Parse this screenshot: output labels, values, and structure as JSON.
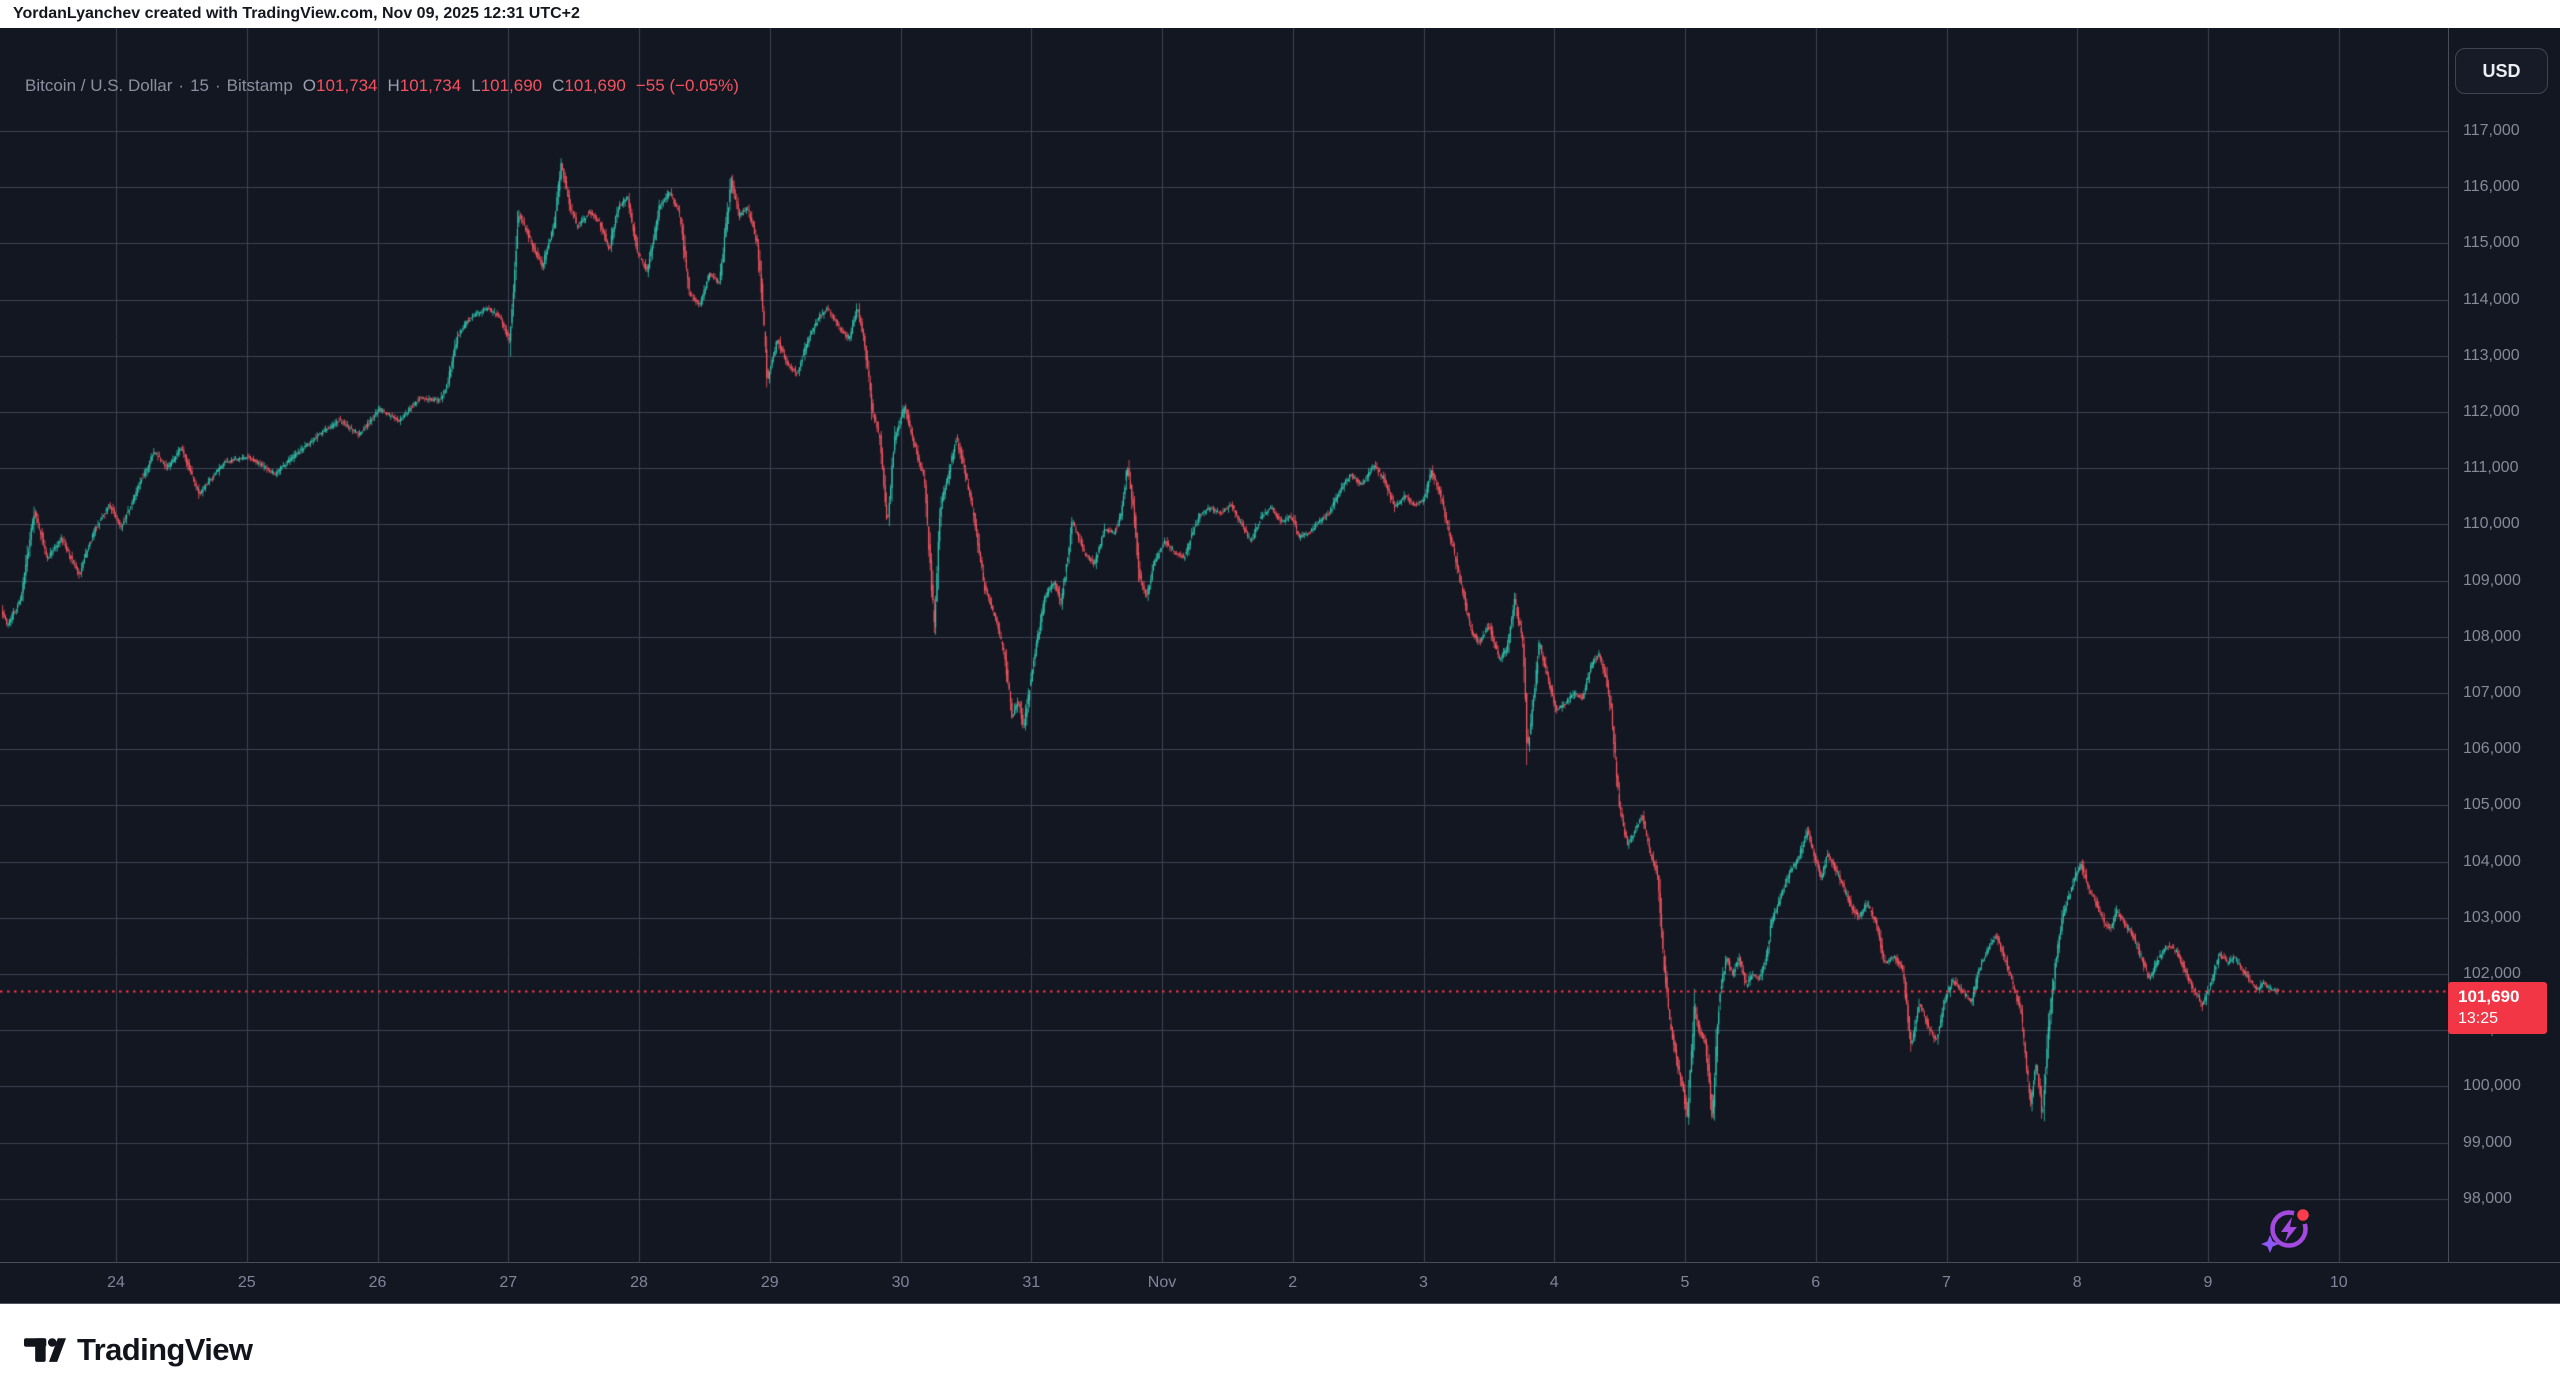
{
  "header": {
    "attribution": "YordanLyanchev created with TradingView.com, Nov 09, 2025 12:31 UTC+2"
  },
  "legend": {
    "symbol": "Bitcoin / U.S. Dollar",
    "separator": "·",
    "interval": "15",
    "exchange": "Bitstamp",
    "open_label": "O",
    "open": "101,734",
    "high_label": "H",
    "high": "101,734",
    "low_label": "L",
    "low": "101,690",
    "close_label": "C",
    "close": "101,690",
    "change": "−55 (−0.05%)"
  },
  "currency_button": {
    "label": "USD"
  },
  "price_label": {
    "price": "101,690",
    "countdown": "13:25"
  },
  "footer": {
    "brand": "TradingView"
  },
  "icons": {
    "spark": "spark-ai-icon",
    "logo": "tradingview-logo-icon"
  },
  "colors": {
    "up": "#2fbfa9",
    "down": "#f2545f",
    "accent_red": "#f23645",
    "background": "#131722",
    "grid": "#3e4353",
    "axis_text": "#848a99"
  },
  "chart_data": {
    "type": "candlestick",
    "title": "Bitcoin / U.S. Dollar",
    "exchange": "Bitstamp",
    "interval_minutes": 15,
    "last_price": 101690,
    "current_candle": {
      "open": 101734,
      "high": 101734,
      "low": 101690,
      "close": 101690,
      "change": -55,
      "change_pct": -0.05
    },
    "price_axis": {
      "min": 98000,
      "max": 117000,
      "tick_step": 1000,
      "ticks": [
        117000,
        116000,
        115000,
        114000,
        113000,
        112000,
        111000,
        110000,
        109000,
        108000,
        107000,
        106000,
        105000,
        104000,
        103000,
        102000,
        101000,
        100000,
        99000,
        98000
      ]
    },
    "time_axis": {
      "labels": [
        "24",
        "25",
        "26",
        "27",
        "28",
        "29",
        "30",
        "31",
        "Nov",
        "2",
        "3",
        "4",
        "5",
        "6",
        "7",
        "8",
        "9",
        "10"
      ]
    },
    "grid": true,
    "legend_position": "top-left",
    "seed": 7,
    "anchors": [
      [
        0,
        108600
      ],
      [
        8,
        108200
      ],
      [
        22,
        108700
      ],
      [
        35,
        110250
      ],
      [
        48,
        109400
      ],
      [
        62,
        109750
      ],
      [
        80,
        109100
      ],
      [
        95,
        109900
      ],
      [
        110,
        110350
      ],
      [
        122,
        109950
      ],
      [
        140,
        110700
      ],
      [
        155,
        111300
      ],
      [
        168,
        111000
      ],
      [
        182,
        111350
      ],
      [
        200,
        110550
      ],
      [
        225,
        111100
      ],
      [
        250,
        111200
      ],
      [
        275,
        110900
      ],
      [
        300,
        111300
      ],
      [
        320,
        111600
      ],
      [
        340,
        111850
      ],
      [
        360,
        111600
      ],
      [
        380,
        112050
      ],
      [
        400,
        111850
      ],
      [
        420,
        112250
      ],
      [
        440,
        112200
      ],
      [
        448,
        112500
      ],
      [
        458,
        113350
      ],
      [
        472,
        113700
      ],
      [
        488,
        113850
      ],
      [
        500,
        113700
      ],
      [
        510,
        113280
      ],
      [
        515,
        114400
      ],
      [
        519,
        115550
      ],
      [
        530,
        115100
      ],
      [
        543,
        114600
      ],
      [
        555,
        115350
      ],
      [
        562,
        116450
      ],
      [
        570,
        115700
      ],
      [
        578,
        115300
      ],
      [
        590,
        115550
      ],
      [
        600,
        115400
      ],
      [
        610,
        114900
      ],
      [
        618,
        115600
      ],
      [
        628,
        115850
      ],
      [
        638,
        114850
      ],
      [
        648,
        114500
      ],
      [
        660,
        115650
      ],
      [
        670,
        115900
      ],
      [
        680,
        115550
      ],
      [
        690,
        114100
      ],
      [
        700,
        113900
      ],
      [
        710,
        114450
      ],
      [
        720,
        114300
      ],
      [
        732,
        116100
      ],
      [
        740,
        115500
      ],
      [
        748,
        115650
      ],
      [
        758,
        115000
      ],
      [
        763,
        114000
      ],
      [
        768,
        112550
      ],
      [
        778,
        113300
      ],
      [
        788,
        112850
      ],
      [
        798,
        112700
      ],
      [
        808,
        113250
      ],
      [
        820,
        113700
      ],
      [
        828,
        113850
      ],
      [
        840,
        113500
      ],
      [
        850,
        113300
      ],
      [
        858,
        113850
      ],
      [
        865,
        113300
      ],
      [
        873,
        112000
      ],
      [
        880,
        111600
      ],
      [
        888,
        110000
      ],
      [
        895,
        111500
      ],
      [
        905,
        112100
      ],
      [
        915,
        111400
      ],
      [
        925,
        110800
      ],
      [
        935,
        108200
      ],
      [
        941,
        110300
      ],
      [
        948,
        110800
      ],
      [
        957,
        111550
      ],
      [
        965,
        111000
      ],
      [
        975,
        110100
      ],
      [
        985,
        108900
      ],
      [
        995,
        108400
      ],
      [
        1005,
        107700
      ],
      [
        1013,
        106550
      ],
      [
        1019,
        106900
      ],
      [
        1024,
        106350
      ],
      [
        1032,
        107300
      ],
      [
        1045,
        108700
      ],
      [
        1055,
        109000
      ],
      [
        1062,
        108600
      ],
      [
        1073,
        110050
      ],
      [
        1085,
        109500
      ],
      [
        1095,
        109300
      ],
      [
        1105,
        109900
      ],
      [
        1115,
        109850
      ],
      [
        1122,
        110200
      ],
      [
        1128,
        111050
      ],
      [
        1134,
        110300
      ],
      [
        1140,
        109100
      ],
      [
        1147,
        108700
      ],
      [
        1155,
        109300
      ],
      [
        1165,
        109700
      ],
      [
        1175,
        109500
      ],
      [
        1185,
        109400
      ],
      [
        1192,
        109800
      ],
      [
        1200,
        110150
      ],
      [
        1210,
        110300
      ],
      [
        1222,
        110200
      ],
      [
        1232,
        110350
      ],
      [
        1245,
        109900
      ],
      [
        1252,
        109700
      ],
      [
        1262,
        110150
      ],
      [
        1272,
        110300
      ],
      [
        1282,
        110050
      ],
      [
        1292,
        110150
      ],
      [
        1300,
        109780
      ],
      [
        1310,
        109850
      ],
      [
        1320,
        110050
      ],
      [
        1330,
        110200
      ],
      [
        1340,
        110600
      ],
      [
        1352,
        110900
      ],
      [
        1362,
        110700
      ],
      [
        1375,
        111050
      ],
      [
        1385,
        110800
      ],
      [
        1395,
        110300
      ],
      [
        1405,
        110500
      ],
      [
        1415,
        110350
      ],
      [
        1425,
        110450
      ],
      [
        1432,
        110950
      ],
      [
        1440,
        110600
      ],
      [
        1448,
        110000
      ],
      [
        1455,
        109500
      ],
      [
        1462,
        108900
      ],
      [
        1472,
        108100
      ],
      [
        1480,
        107900
      ],
      [
        1490,
        108200
      ],
      [
        1500,
        107600
      ],
      [
        1508,
        107800
      ],
      [
        1515,
        108650
      ],
      [
        1524,
        107900
      ],
      [
        1528,
        105950
      ],
      [
        1533,
        106700
      ],
      [
        1540,
        107900
      ],
      [
        1548,
        107300
      ],
      [
        1557,
        106700
      ],
      [
        1565,
        106800
      ],
      [
        1575,
        107000
      ],
      [
        1583,
        106900
      ],
      [
        1592,
        107500
      ],
      [
        1600,
        107700
      ],
      [
        1606,
        107300
      ],
      [
        1612,
        106700
      ],
      [
        1620,
        105000
      ],
      [
        1628,
        104300
      ],
      [
        1635,
        104500
      ],
      [
        1643,
        104850
      ],
      [
        1650,
        104200
      ],
      [
        1658,
        103800
      ],
      [
        1663,
        102500
      ],
      [
        1670,
        101200
      ],
      [
        1677,
        100500
      ],
      [
        1683,
        100000
      ],
      [
        1688,
        99450
      ],
      [
        1695,
        101400
      ],
      [
        1700,
        101000
      ],
      [
        1706,
        100800
      ],
      [
        1713,
        99450
      ],
      [
        1720,
        101600
      ],
      [
        1727,
        102300
      ],
      [
        1733,
        102000
      ],
      [
        1740,
        102300
      ],
      [
        1747,
        101800
      ],
      [
        1753,
        102000
      ],
      [
        1760,
        101900
      ],
      [
        1767,
        102300
      ],
      [
        1772,
        102900
      ],
      [
        1780,
        103300
      ],
      [
        1790,
        103800
      ],
      [
        1800,
        104100
      ],
      [
        1808,
        104550
      ],
      [
        1815,
        104100
      ],
      [
        1822,
        103700
      ],
      [
        1828,
        104150
      ],
      [
        1835,
        103900
      ],
      [
        1843,
        103600
      ],
      [
        1852,
        103200
      ],
      [
        1860,
        103000
      ],
      [
        1868,
        103250
      ],
      [
        1877,
        102900
      ],
      [
        1885,
        102200
      ],
      [
        1895,
        102300
      ],
      [
        1903,
        102100
      ],
      [
        1912,
        100700
      ],
      [
        1920,
        101500
      ],
      [
        1928,
        101100
      ],
      [
        1937,
        100800
      ],
      [
        1945,
        101500
      ],
      [
        1953,
        101900
      ],
      [
        1963,
        101700
      ],
      [
        1972,
        101500
      ],
      [
        1980,
        102100
      ],
      [
        1990,
        102500
      ],
      [
        1997,
        102700
      ],
      [
        2005,
        102300
      ],
      [
        2012,
        101900
      ],
      [
        2022,
        101300
      ],
      [
        2031,
        99700
      ],
      [
        2037,
        100400
      ],
      [
        2043,
        99450
      ],
      [
        2050,
        101200
      ],
      [
        2056,
        102200
      ],
      [
        2063,
        103000
      ],
      [
        2070,
        103400
      ],
      [
        2077,
        103800
      ],
      [
        2082,
        103950
      ],
      [
        2090,
        103500
      ],
      [
        2098,
        103200
      ],
      [
        2105,
        102900
      ],
      [
        2112,
        102800
      ],
      [
        2117,
        103120
      ],
      [
        2125,
        102900
      ],
      [
        2133,
        102700
      ],
      [
        2142,
        102300
      ],
      [
        2150,
        101900
      ],
      [
        2157,
        102200
      ],
      [
        2165,
        102450
      ],
      [
        2170,
        102500
      ],
      [
        2177,
        102400
      ],
      [
        2185,
        102100
      ],
      [
        2192,
        101800
      ],
      [
        2203,
        101450
      ],
      [
        2213,
        101900
      ],
      [
        2220,
        102350
      ],
      [
        2228,
        102200
      ],
      [
        2235,
        102300
      ],
      [
        2242,
        102100
      ],
      [
        2250,
        101900
      ],
      [
        2258,
        101700
      ],
      [
        2264,
        101850
      ],
      [
        2270,
        101750
      ],
      [
        2278,
        101690
      ]
    ]
  }
}
